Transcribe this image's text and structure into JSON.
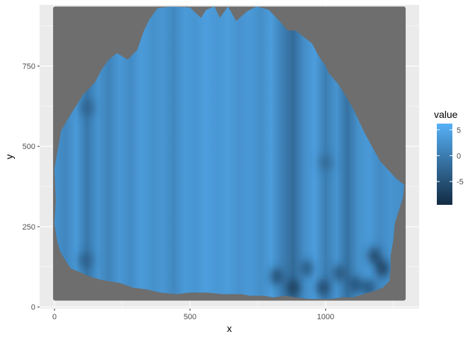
{
  "chart_data": {
    "type": "heatmap",
    "title": "",
    "xlabel": "x",
    "ylabel": "y",
    "xlim": [
      -55,
      1345
    ],
    "ylim": [
      -5,
      940
    ],
    "x_ticks": [
      0,
      500,
      1000
    ],
    "x_tick_labels": [
      "0",
      "500",
      "1000"
    ],
    "y_ticks": [
      0,
      250,
      500,
      750
    ],
    "y_tick_labels": [
      "0",
      "250",
      "500",
      "750"
    ],
    "tile_extent": {
      "x": [
        0,
        1290
      ],
      "y": [
        20,
        935
      ]
    },
    "na_fill": "#6e6e6e",
    "panel_background": "#ebebeb",
    "grid": true,
    "legend": {
      "title": "value",
      "position": "right",
      "breaks": [
        5,
        0,
        -5
      ],
      "break_labels": [
        "5",
        "0",
        "-5"
      ],
      "range": [
        -9.5,
        6.2
      ],
      "low_color": "#132b43",
      "high_color": "#56b1f7"
    },
    "surface_outline": [
      [
        5,
        230
      ],
      [
        0,
        260
      ],
      [
        5,
        330
      ],
      [
        0,
        430
      ],
      [
        10,
        480
      ],
      [
        25,
        550
      ],
      [
        60,
        600
      ],
      [
        105,
        660
      ],
      [
        150,
        700
      ],
      [
        175,
        740
      ],
      [
        200,
        770
      ],
      [
        230,
        790
      ],
      [
        270,
        770
      ],
      [
        305,
        800
      ],
      [
        330,
        860
      ],
      [
        350,
        895
      ],
      [
        380,
        930
      ],
      [
        430,
        935
      ],
      [
        500,
        932
      ],
      [
        540,
        900
      ],
      [
        560,
        925
      ],
      [
        590,
        935
      ],
      [
        610,
        900
      ],
      [
        640,
        935
      ],
      [
        670,
        890
      ],
      [
        710,
        920
      ],
      [
        745,
        935
      ],
      [
        790,
        925
      ],
      [
        830,
        890
      ],
      [
        860,
        860
      ],
      [
        890,
        860
      ],
      [
        920,
        840
      ],
      [
        950,
        820
      ],
      [
        975,
        780
      ],
      [
        1000,
        750
      ],
      [
        1010,
        730
      ],
      [
        1050,
        690
      ],
      [
        1100,
        620
      ],
      [
        1145,
        540
      ],
      [
        1200,
        455
      ],
      [
        1260,
        400
      ],
      [
        1290,
        380
      ],
      [
        1285,
        340
      ],
      [
        1270,
        300
      ],
      [
        1255,
        260
      ],
      [
        1250,
        210
      ],
      [
        1240,
        160
      ],
      [
        1240,
        120
      ],
      [
        1235,
        80
      ],
      [
        1210,
        60
      ],
      [
        1180,
        50
      ],
      [
        1140,
        40
      ],
      [
        1100,
        30
      ],
      [
        1060,
        30
      ],
      [
        1020,
        25
      ],
      [
        980,
        25
      ],
      [
        940,
        25
      ],
      [
        890,
        30
      ],
      [
        850,
        35
      ],
      [
        810,
        30
      ],
      [
        770,
        35
      ],
      [
        720,
        35
      ],
      [
        690,
        40
      ],
      [
        620,
        40
      ],
      [
        560,
        45
      ],
      [
        500,
        45
      ],
      [
        450,
        40
      ],
      [
        390,
        45
      ],
      [
        340,
        55
      ],
      [
        290,
        60
      ],
      [
        240,
        75
      ],
      [
        200,
        80
      ],
      [
        170,
        85
      ],
      [
        130,
        95
      ],
      [
        90,
        110
      ],
      [
        60,
        120
      ],
      [
        40,
        145
      ],
      [
        20,
        175
      ],
      [
        10,
        205
      ]
    ],
    "column_values": [
      [
        0,
        2.5
      ],
      [
        40,
        1.2
      ],
      [
        80,
        3.5
      ],
      [
        120,
        -0.5
      ],
      [
        160,
        2.8
      ],
      [
        200,
        0.8
      ],
      [
        240,
        3.2
      ],
      [
        280,
        1.8
      ],
      [
        320,
        3.6
      ],
      [
        360,
        2.4
      ],
      [
        400,
        3.0
      ],
      [
        440,
        1.4
      ],
      [
        480,
        3.5
      ],
      [
        520,
        2.9
      ],
      [
        560,
        4.0
      ],
      [
        600,
        3.1
      ],
      [
        640,
        3.8
      ],
      [
        680,
        2.6
      ],
      [
        720,
        3.4
      ],
      [
        760,
        2.2
      ],
      [
        800,
        3.7
      ],
      [
        840,
        0.5
      ],
      [
        880,
        -2.0
      ],
      [
        920,
        2.0
      ],
      [
        960,
        3.9
      ],
      [
        1000,
        0.2
      ],
      [
        1040,
        2.8
      ],
      [
        1080,
        -1.2
      ],
      [
        1120,
        2.4
      ],
      [
        1160,
        3.4
      ],
      [
        1200,
        1.8
      ],
      [
        1240,
        2.8
      ],
      [
        1290,
        2.0
      ]
    ],
    "dark_spots": [
      {
        "x": 820,
        "y": 95,
        "value": -6.5
      },
      {
        "x": 880,
        "y": 60,
        "value": -8.0
      },
      {
        "x": 930,
        "y": 120,
        "value": -5.0
      },
      {
        "x": 990,
        "y": 60,
        "value": -7.0
      },
      {
        "x": 1050,
        "y": 105,
        "value": -5.5
      },
      {
        "x": 1110,
        "y": 70,
        "value": -6.0
      },
      {
        "x": 1180,
        "y": 160,
        "value": -7.5
      },
      {
        "x": 1210,
        "y": 120,
        "value": -8.5
      },
      {
        "x": 1160,
        "y": 60,
        "value": -6.0
      },
      {
        "x": 115,
        "y": 145,
        "value": -4.0
      },
      {
        "x": 120,
        "y": 620,
        "value": -3.5
      },
      {
        "x": 1000,
        "y": 450,
        "value": -2.5
      }
    ]
  }
}
